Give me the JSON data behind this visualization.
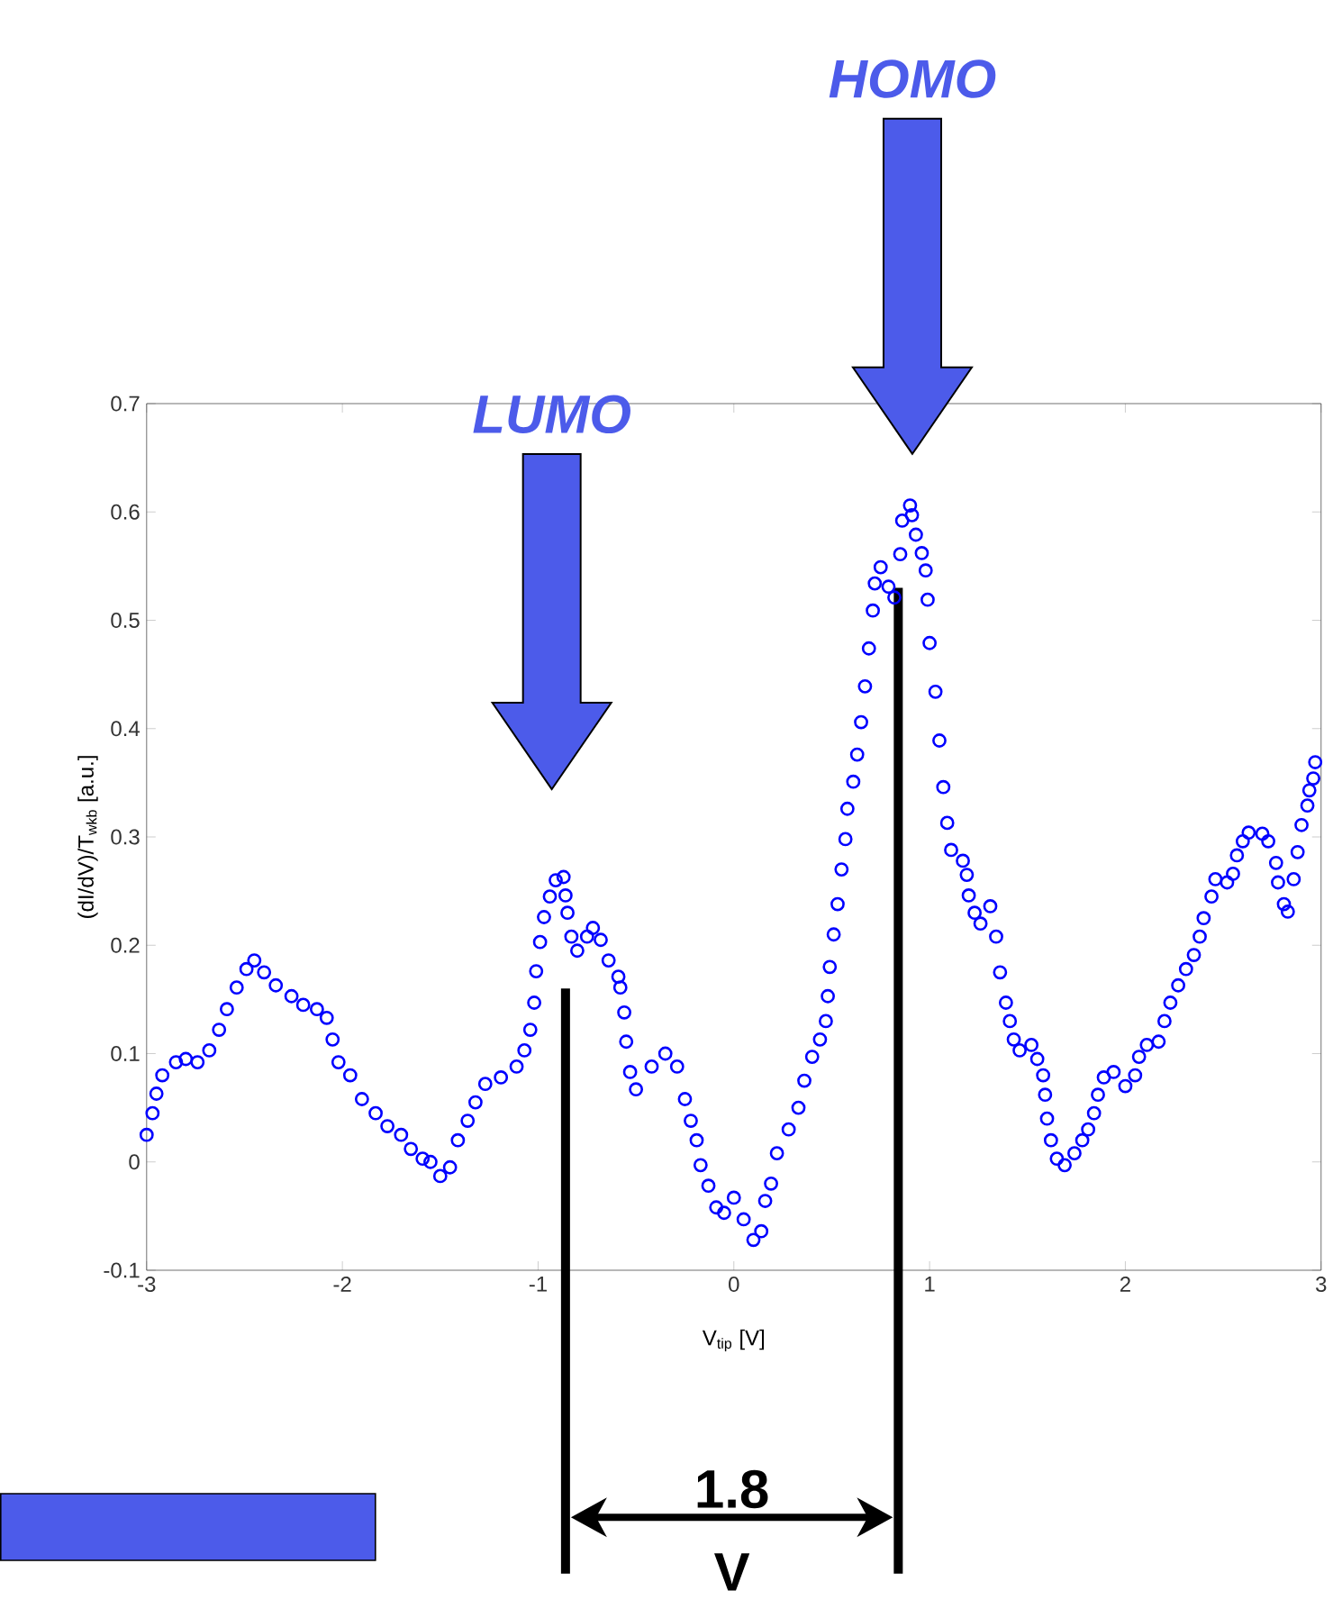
{
  "chart_data": {
    "type": "scatter",
    "xlabel": "V$_{tip}$        [V]",
    "ylabel": "(dI/dV)/T$_{wkb}$        [a.u.]",
    "marker": "circle",
    "xlim": [
      -3,
      3
    ],
    "ylim": [
      -0.1,
      0.7
    ],
    "xticks": [
      -3,
      -2,
      -1,
      0,
      1,
      2,
      3
    ],
    "yticks": [
      -0.1,
      0,
      0.1,
      0.2,
      0.3,
      0.4,
      0.5,
      0.6,
      0.7
    ],
    "series": [
      {
        "color": "#0000ff",
        "x": [
          -3.0,
          -2.97,
          -2.95,
          -2.92,
          -2.85,
          -2.8,
          -2.74,
          -2.68,
          -2.63,
          -2.59,
          -2.54,
          -2.49,
          -2.45,
          -2.4,
          -2.34,
          -2.26,
          -2.2,
          -2.13,
          -2.08,
          -2.05,
          -2.02,
          -1.96,
          -1.9,
          -1.83,
          -1.77,
          -1.7,
          -1.65,
          -1.59,
          -1.55,
          -1.5,
          -1.45,
          -1.41,
          -1.36,
          -1.32,
          -1.27,
          -1.19,
          -1.11,
          -1.07,
          -1.04,
          -1.02,
          -1.01,
          -0.99,
          -0.97,
          -0.94,
          -0.91,
          -0.87,
          -0.86,
          -0.85,
          -0.83,
          -0.8,
          -0.75,
          -0.72,
          -0.68,
          -0.64,
          -0.59,
          -0.58,
          -0.56,
          -0.55,
          -0.53,
          -0.5,
          -0.42,
          -0.35,
          -0.29,
          -0.25,
          -0.22,
          -0.19,
          -0.17,
          -0.13,
          -0.09,
          -0.05,
          0.0,
          0.05,
          0.1,
          0.14,
          0.16,
          0.19,
          0.22,
          0.28,
          0.33,
          0.36,
          0.4,
          0.44,
          0.47,
          0.48,
          0.49,
          0.51,
          0.53,
          0.55,
          0.57,
          0.58,
          0.61,
          0.63,
          0.65,
          0.67,
          0.69,
          0.71,
          0.72,
          0.75,
          0.79,
          0.82,
          0.85,
          0.86,
          0.9,
          0.91,
          0.93,
          0.96,
          0.98,
          0.99,
          1.0,
          1.03,
          1.05,
          1.07,
          1.09,
          1.11,
          1.17,
          1.19,
          1.2,
          1.23,
          1.26,
          1.31,
          1.34,
          1.36,
          1.39,
          1.41,
          1.43,
          1.46,
          1.52,
          1.55,
          1.58,
          1.59,
          1.6,
          1.62,
          1.65,
          1.69,
          1.74,
          1.78,
          1.81,
          1.84,
          1.86,
          1.89,
          1.94,
          2.0,
          2.05,
          2.07,
          2.11,
          2.17,
          2.2,
          2.23,
          2.27,
          2.31,
          2.35,
          2.38,
          2.4,
          2.44,
          2.46,
          2.52,
          2.55,
          2.57,
          2.6,
          2.63,
          2.7,
          2.73,
          2.77,
          2.78,
          2.81,
          2.83,
          2.86,
          2.88,
          2.9,
          2.93,
          2.94,
          2.96,
          2.97
        ],
        "values": [
          0.025,
          0.045,
          0.063,
          0.08,
          0.092,
          0.095,
          0.092,
          0.103,
          0.122,
          0.141,
          0.161,
          0.178,
          0.186,
          0.175,
          0.163,
          0.153,
          0.145,
          0.141,
          0.133,
          0.113,
          0.092,
          0.08,
          0.058,
          0.045,
          0.033,
          0.025,
          0.012,
          0.003,
          0.0,
          -0.013,
          -0.005,
          0.02,
          0.038,
          0.055,
          0.072,
          0.078,
          0.088,
          0.103,
          0.122,
          0.147,
          0.176,
          0.203,
          0.226,
          0.245,
          0.26,
          0.263,
          0.246,
          0.23,
          0.208,
          0.195,
          0.208,
          0.216,
          0.205,
          0.186,
          0.171,
          0.161,
          0.138,
          0.111,
          0.083,
          0.067,
          0.088,
          0.1,
          0.088,
          0.058,
          0.038,
          0.02,
          -0.003,
          -0.022,
          -0.042,
          -0.047,
          -0.033,
          -0.053,
          -0.072,
          -0.064,
          -0.036,
          -0.02,
          0.008,
          0.03,
          0.05,
          0.075,
          0.097,
          0.113,
          0.13,
          0.153,
          0.18,
          0.21,
          0.238,
          0.27,
          0.298,
          0.326,
          0.351,
          0.376,
          0.406,
          0.439,
          0.474,
          0.509,
          0.534,
          0.549,
          0.531,
          0.521,
          0.561,
          0.592,
          0.606,
          0.597,
          0.579,
          0.562,
          0.546,
          0.519,
          0.479,
          0.434,
          0.389,
          0.346,
          0.313,
          0.288,
          0.278,
          0.265,
          0.246,
          0.23,
          0.22,
          0.236,
          0.208,
          0.175,
          0.147,
          0.13,
          0.113,
          0.103,
          0.108,
          0.095,
          0.08,
          0.062,
          0.04,
          0.02,
          0.003,
          -0.003,
          0.008,
          0.02,
          0.03,
          0.045,
          0.062,
          0.078,
          0.083,
          0.07,
          0.08,
          0.097,
          0.108,
          0.111,
          0.13,
          0.147,
          0.163,
          0.178,
          0.191,
          0.208,
          0.225,
          0.245,
          0.261,
          0.258,
          0.266,
          0.283,
          0.296,
          0.304,
          0.303,
          0.296,
          0.276,
          0.258,
          0.238,
          0.231,
          0.261,
          0.286,
          0.311,
          0.329,
          0.343,
          0.354,
          0.369
        ]
      }
    ],
    "ref_lines": [
      {
        "axis": "x",
        "value": -0.86,
        "color": "#000000"
      },
      {
        "axis": "x",
        "value": 0.84,
        "color": "#000000"
      }
    ],
    "annotations": [
      "LUMO",
      "HOMO",
      "1.8 V"
    ]
  }
}
